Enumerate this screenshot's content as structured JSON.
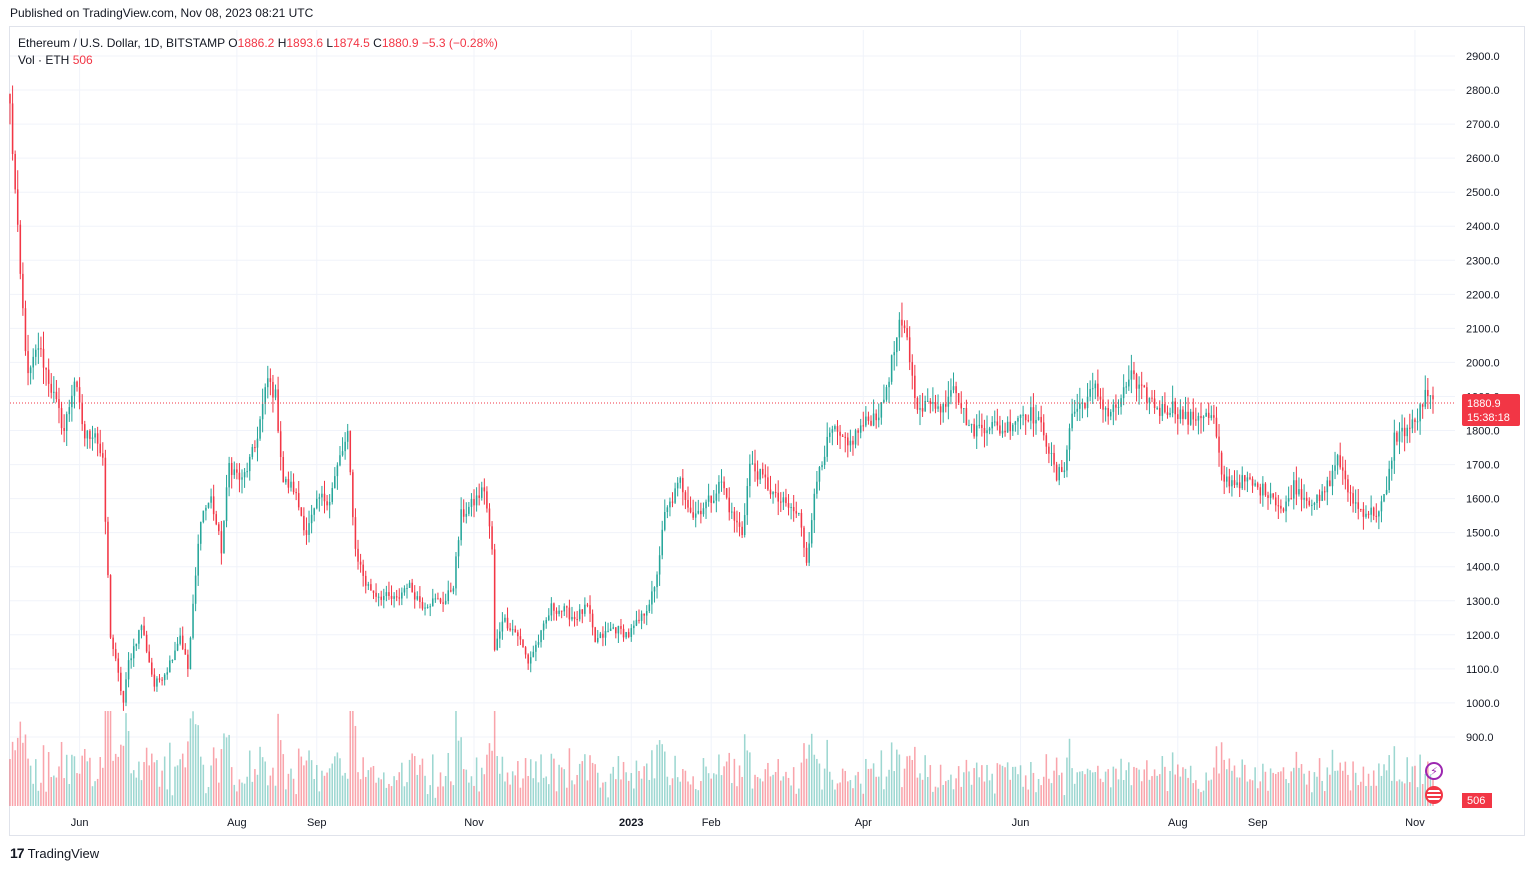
{
  "header": {
    "published": "Published on TradingView.com, Nov 08, 2023 08:21 UTC"
  },
  "legend": {
    "symbol": "Ethereum / U.S. Dollar, 1D, BITSTAMP",
    "open_label": "O",
    "open": "1886.2",
    "high_label": "H",
    "high": "1893.6",
    "low_label": "L",
    "low": "1874.5",
    "close_label": "C",
    "close": "1880.9",
    "change": "−5.3 (−0.28%)",
    "vol_label": "Vol · ETH",
    "vol_value": "506"
  },
  "last_price": {
    "value": "1880.9",
    "countdown": "15:38:18"
  },
  "volume_tag": "506",
  "footer": {
    "brand": "TradingView"
  },
  "colors": {
    "up": "#26a69a",
    "down": "#f23645",
    "grid": "#f0f3fa",
    "border": "#e0e3eb"
  },
  "icons": [
    "lightning-icon",
    "us-flag-icon",
    "tradingview-logo-icon"
  ],
  "chart_data": {
    "type": "candlestick",
    "title": "Ethereum / U.S. Dollar, 1D, BITSTAMP",
    "interval": "1D",
    "y_ticks": [
      900,
      1000,
      1100,
      1200,
      1300,
      1400,
      1500,
      1600,
      1700,
      1800,
      1900,
      2000,
      2100,
      2200,
      2300,
      2400,
      2500,
      2600,
      2700,
      2800,
      2900
    ],
    "y_tick_labels": [
      "900.0",
      "1000.0",
      "1100.0",
      "1200.0",
      "1300.0",
      "1400.0",
      "1500.0",
      "1600.0",
      "1700.0",
      "1800.0",
      "1900.0",
      "2000.0",
      "2100.0",
      "2200.0",
      "2300.0",
      "2400.0",
      "2500.0",
      "2600.0",
      "2700.0",
      "2800.0",
      "2900.0"
    ],
    "ylim": [
      800,
      2950
    ],
    "x_labels": [
      {
        "label": "Jun",
        "date": "2022-06-01"
      },
      {
        "label": "Aug",
        "date": "2022-08-01"
      },
      {
        "label": "Sep",
        "date": "2022-09-01"
      },
      {
        "label": "Nov",
        "date": "2022-11-01"
      },
      {
        "label": "2023",
        "date": "2023-01-01",
        "bold": true
      },
      {
        "label": "Feb",
        "date": "2023-02-01"
      },
      {
        "label": "Apr",
        "date": "2023-04-01"
      },
      {
        "label": "Jun",
        "date": "2023-06-01"
      },
      {
        "label": "Aug",
        "date": "2023-08-01"
      },
      {
        "label": "Sep",
        "date": "2023-09-01"
      },
      {
        "label": "Nov",
        "date": "2023-11-01"
      }
    ],
    "x_range": [
      "2022-05-05",
      "2023-11-08"
    ],
    "close_path": [
      [
        "2022-05-05",
        2750
      ],
      [
        "2022-05-09",
        2250
      ],
      [
        "2022-05-12",
        1950
      ],
      [
        "2022-05-16",
        2050
      ],
      [
        "2022-05-20",
        1950
      ],
      [
        "2022-05-26",
        1800
      ],
      [
        "2022-05-30",
        1950
      ],
      [
        "2022-06-03",
        1780
      ],
      [
        "2022-06-07",
        1800
      ],
      [
        "2022-06-10",
        1700
      ],
      [
        "2022-06-13",
        1200
      ],
      [
        "2022-06-18",
        1000
      ],
      [
        "2022-06-20",
        1120
      ],
      [
        "2022-06-25",
        1230
      ],
      [
        "2022-06-30",
        1050
      ],
      [
        "2022-07-05",
        1100
      ],
      [
        "2022-07-10",
        1200
      ],
      [
        "2022-07-13",
        1100
      ],
      [
        "2022-07-18",
        1550
      ],
      [
        "2022-07-22",
        1600
      ],
      [
        "2022-07-26",
        1450
      ],
      [
        "2022-07-29",
        1700
      ],
      [
        "2022-08-03",
        1650
      ],
      [
        "2022-08-08",
        1750
      ],
      [
        "2022-08-13",
        1950
      ],
      [
        "2022-08-16",
        1900
      ],
      [
        "2022-08-19",
        1650
      ],
      [
        "2022-08-23",
        1630
      ],
      [
        "2022-08-28",
        1500
      ],
      [
        "2022-09-02",
        1600
      ],
      [
        "2022-09-06",
        1600
      ],
      [
        "2022-09-10",
        1720
      ],
      [
        "2022-09-13",
        1780
      ],
      [
        "2022-09-16",
        1450
      ],
      [
        "2022-09-20",
        1350
      ],
      [
        "2022-09-24",
        1320
      ],
      [
        "2022-10-02",
        1300
      ],
      [
        "2022-10-06",
        1350
      ],
      [
        "2022-10-12",
        1290
      ],
      [
        "2022-10-17",
        1300
      ],
      [
        "2022-10-21",
        1300
      ],
      [
        "2022-10-24",
        1350
      ],
      [
        "2022-10-27",
        1550
      ],
      [
        "2022-10-31",
        1580
      ],
      [
        "2022-11-05",
        1630
      ],
      [
        "2022-11-08",
        1450
      ],
      [
        "2022-11-09",
        1150
      ],
      [
        "2022-11-12",
        1250
      ],
      [
        "2022-11-18",
        1200
      ],
      [
        "2022-11-22",
        1120
      ],
      [
        "2022-11-27",
        1200
      ],
      [
        "2022-12-01",
        1280
      ],
      [
        "2022-12-06",
        1270
      ],
      [
        "2022-12-10",
        1250
      ],
      [
        "2022-12-15",
        1280
      ],
      [
        "2022-12-18",
        1180
      ],
      [
        "2022-12-25",
        1220
      ],
      [
        "2022-12-31",
        1200
      ],
      [
        "2023-01-05",
        1250
      ],
      [
        "2023-01-10",
        1330
      ],
      [
        "2023-01-14",
        1550
      ],
      [
        "2023-01-20",
        1650
      ],
      [
        "2023-01-25",
        1550
      ],
      [
        "2023-02-01",
        1600
      ],
      [
        "2023-02-05",
        1650
      ],
      [
        "2023-02-09",
        1550
      ],
      [
        "2023-02-13",
        1500
      ],
      [
        "2023-02-16",
        1700
      ],
      [
        "2023-02-22",
        1650
      ],
      [
        "2023-02-26",
        1600
      ],
      [
        "2023-03-02",
        1580
      ],
      [
        "2023-03-07",
        1550
      ],
      [
        "2023-03-10",
        1420
      ],
      [
        "2023-03-12",
        1550
      ],
      [
        "2023-03-15",
        1700
      ],
      [
        "2023-03-20",
        1800
      ],
      [
        "2023-03-26",
        1750
      ],
      [
        "2023-03-30",
        1800
      ],
      [
        "2023-04-03",
        1830
      ],
      [
        "2023-04-08",
        1860
      ],
      [
        "2023-04-12",
        2000
      ],
      [
        "2023-04-15",
        2100
      ],
      [
        "2023-04-18",
        2080
      ],
      [
        "2023-04-20",
        1950
      ],
      [
        "2023-04-23",
        1850
      ],
      [
        "2023-04-28",
        1900
      ],
      [
        "2023-05-01",
        1850
      ],
      [
        "2023-05-06",
        1950
      ],
      [
        "2023-05-10",
        1850
      ],
      [
        "2023-05-13",
        1800
      ],
      [
        "2023-05-20",
        1820
      ],
      [
        "2023-05-25",
        1800
      ],
      [
        "2023-05-28",
        1820
      ],
      [
        "2023-06-01",
        1850
      ],
      [
        "2023-06-05",
        1850
      ],
      [
        "2023-06-10",
        1800
      ],
      [
        "2023-06-15",
        1660
      ],
      [
        "2023-06-18",
        1700
      ],
      [
        "2023-06-21",
        1850
      ],
      [
        "2023-06-25",
        1880
      ],
      [
        "2023-06-30",
        1920
      ],
      [
        "2023-07-05",
        1850
      ],
      [
        "2023-07-10",
        1880
      ],
      [
        "2023-07-14",
        1980
      ],
      [
        "2023-07-16",
        1920
      ],
      [
        "2023-07-20",
        1900
      ],
      [
        "2023-07-25",
        1860
      ],
      [
        "2023-07-30",
        1870
      ],
      [
        "2023-08-05",
        1830
      ],
      [
        "2023-08-10",
        1850
      ],
      [
        "2023-08-15",
        1830
      ],
      [
        "2023-08-18",
        1660
      ],
      [
        "2023-08-22",
        1650
      ],
      [
        "2023-08-28",
        1650
      ],
      [
        "2023-09-01",
        1630
      ],
      [
        "2023-09-06",
        1620
      ],
      [
        "2023-09-11",
        1560
      ],
      [
        "2023-09-15",
        1640
      ],
      [
        "2023-09-20",
        1600
      ],
      [
        "2023-09-25",
        1590
      ],
      [
        "2023-09-30",
        1670
      ],
      [
        "2023-10-02",
        1730
      ],
      [
        "2023-10-05",
        1640
      ],
      [
        "2023-10-10",
        1570
      ],
      [
        "2023-10-14",
        1560
      ],
      [
        "2023-10-18",
        1560
      ],
      [
        "2023-10-21",
        1620
      ],
      [
        "2023-10-24",
        1780
      ],
      [
        "2023-10-28",
        1800
      ],
      [
        "2023-11-01",
        1820
      ],
      [
        "2023-11-05",
        1900
      ],
      [
        "2023-11-08",
        1880
      ]
    ]
  }
}
